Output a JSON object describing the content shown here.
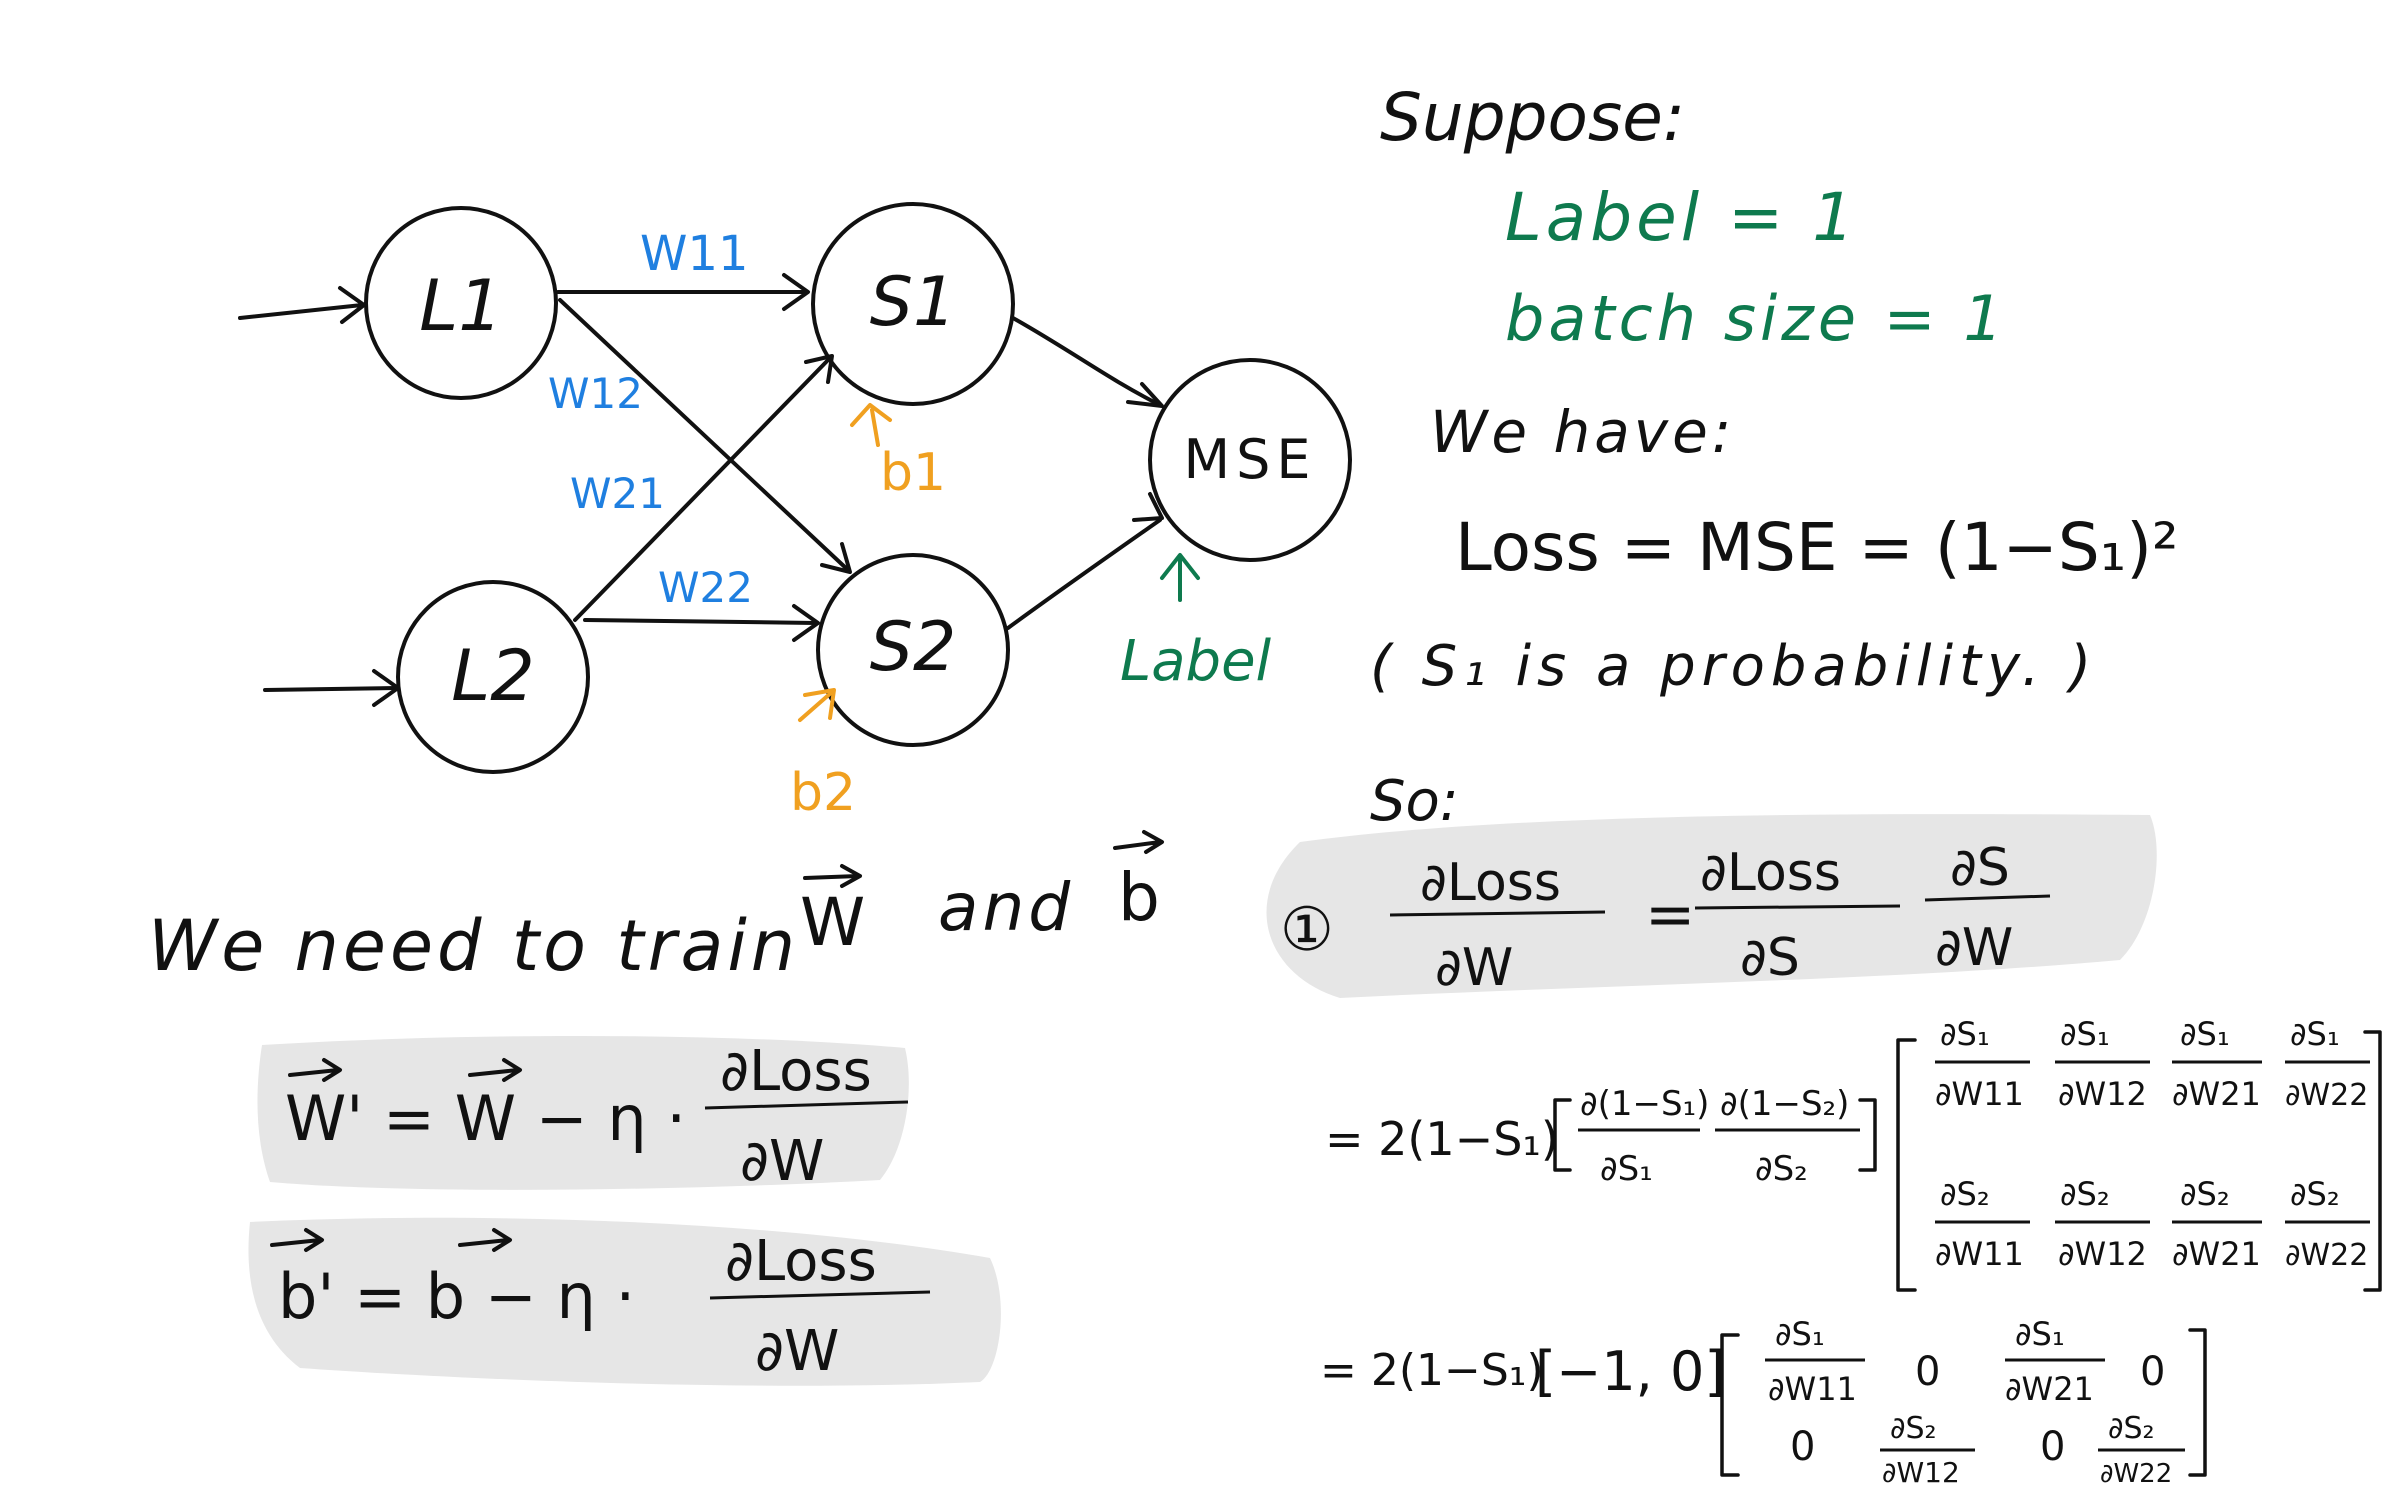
{
  "diagram": {
    "nodes": {
      "l1": "L1",
      "l2": "L2",
      "s1": "S1",
      "s2": "S2",
      "mse": "MSE"
    },
    "edges": {
      "w11": "W11",
      "w12": "W12",
      "w21": "W21",
      "w22": "W22"
    },
    "biases": {
      "b1": "b1",
      "b2": "b2"
    },
    "label": "Label"
  },
  "colors": {
    "ink": "#111111",
    "weights": "#1f7fe0",
    "biases": "#f0a020",
    "label": "#0e7a4e",
    "highlight": "#e6e6e6"
  },
  "notes": {
    "suppose": "Suppose:",
    "label_eq": "Label = 1",
    "batch_eq": "batch size = 1",
    "we_have": "We have:",
    "loss_eq": "Loss = MSE = (1−S₁)²",
    "prob_note": "( S₁ is a probability. )",
    "so": "So:",
    "train": "We need to train",
    "and": "and",
    "vec_w": "W",
    "vec_b": "b",
    "eta": "η",
    "update_w_lhs": "W' = W − η ·",
    "update_b_lhs": "b' = b − η ·",
    "dloss": "∂Loss",
    "dw": "∂W",
    "ds": "∂S",
    "ds_num": "∂S",
    "circled_one": "①",
    "equals": "=",
    "line2_prefix": "= 2(1−S₁)",
    "row_vec_a": "∂(1−S₁)",
    "row_vec_a_den": "∂S₁",
    "row_vec_b": "∂(1−S₂)",
    "row_vec_b_den": "∂S₂",
    "jac_num1": "∂S₁",
    "jac_num2": "∂S₂",
    "jac_w11": "∂W11",
    "jac_w12": "∂W12",
    "jac_w21": "∂W21",
    "jac_w22": "∂W22",
    "line3_prefix": "= 2(1−S₁)",
    "line3_vec": "[−1, 0]",
    "zero": "0"
  }
}
